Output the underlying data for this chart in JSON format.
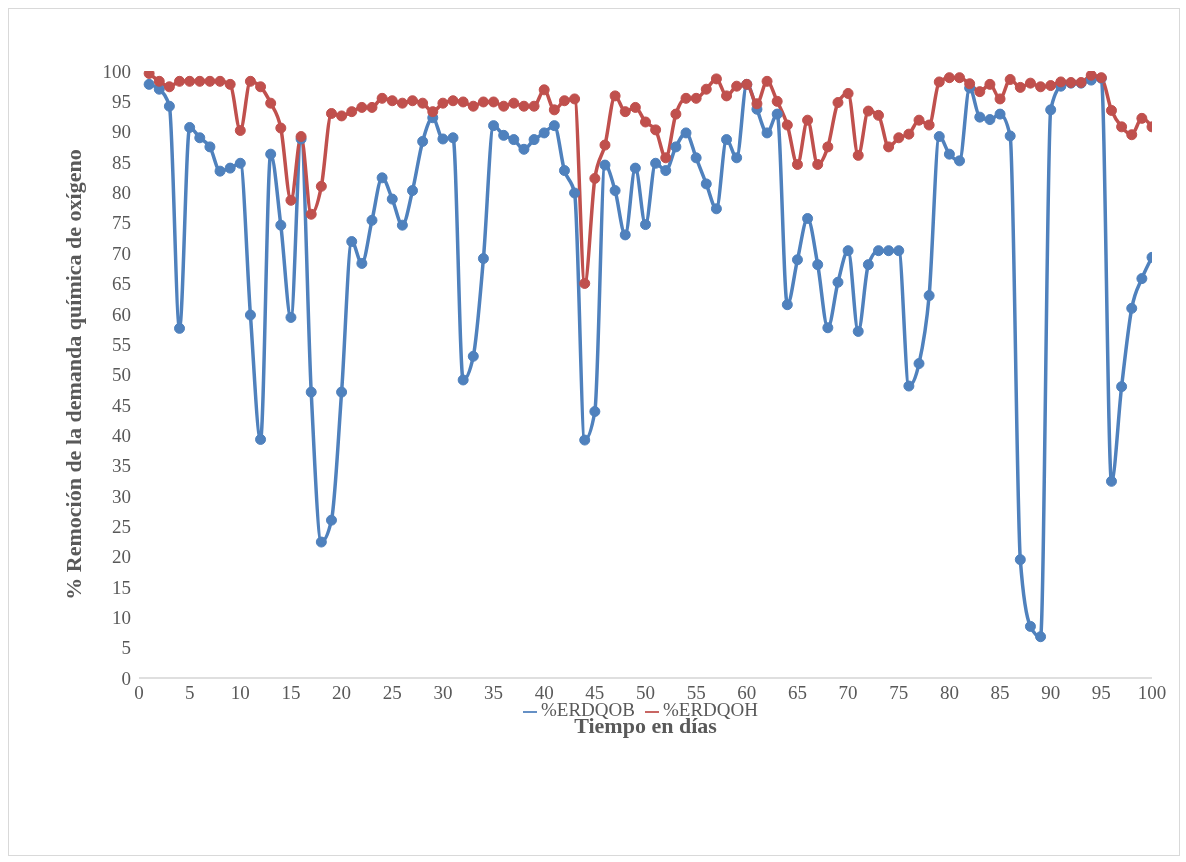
{
  "chart_data": {
    "type": "line",
    "xlabel": "Tiempo en días",
    "ylabel": "% Remoción de la demanda química de oxígeno",
    "x": [
      1,
      2,
      3,
      4,
      5,
      6,
      7,
      8,
      9,
      10,
      11,
      12,
      13,
      14,
      15,
      16,
      17,
      18,
      19,
      20,
      21,
      22,
      23,
      24,
      25,
      26,
      27,
      28,
      29,
      30,
      31,
      32,
      33,
      34,
      35,
      36,
      37,
      38,
      39,
      40,
      41,
      42,
      43,
      44,
      45,
      46,
      47,
      48,
      49,
      50,
      51,
      52,
      53,
      54,
      55,
      56,
      57,
      58,
      59,
      60,
      61,
      62,
      63,
      64,
      65,
      66,
      67,
      68,
      69,
      70,
      71,
      72,
      73,
      74,
      75,
      76,
      77,
      78,
      79,
      80,
      81,
      82,
      83,
      84,
      85,
      86,
      87,
      88,
      89,
      90,
      91,
      92,
      93,
      94,
      95,
      96,
      97,
      98,
      99,
      100
    ],
    "series": [
      {
        "name": "%ERDQOB",
        "color": "#4f81bd",
        "values": [
          97.8,
          97,
          94.2,
          57.6,
          90.7,
          89,
          87.5,
          83.5,
          84,
          84.8,
          59.8,
          39.3,
          86.3,
          74.6,
          59.4,
          88.8,
          47.1,
          22.4,
          26,
          47.1,
          71.9,
          68.3,
          75.4,
          82.4,
          78.9,
          74.6,
          80.3,
          88.4,
          92.3,
          88.8,
          89,
          49.1,
          53,
          69.1,
          91,
          89.4,
          88.7,
          87.1,
          88.7,
          89.8,
          91,
          83.6,
          79.9,
          39.2,
          43.9,
          84.5,
          80.3,
          73,
          84,
          74.7,
          84.8,
          83.6,
          87.5,
          89.8,
          85.7,
          81.4,
          77.3,
          88.7,
          85.7,
          97.8,
          93.7,
          89.8,
          92.9,
          61.5,
          68.9,
          75.7,
          68.1,
          57.7,
          65.2,
          70.4,
          57.1,
          68.1,
          70.4,
          70.4,
          70.4,
          48.1,
          51.8,
          63,
          89.2,
          86.3,
          85.2,
          97.2,
          92.4,
          92,
          92.9,
          89.3,
          19.5,
          8.5,
          6.8,
          93.6,
          97.5,
          98,
          98,
          98.5,
          98.8,
          32.4,
          48,
          60.9,
          65.8,
          69.3
        ]
      },
      {
        "name": "%ERDQOH",
        "color": "#c0504d",
        "values": [
          99.6,
          98.3,
          97.4,
          98.3,
          98.3,
          98.3,
          98.3,
          98.3,
          97.8,
          90.2,
          98.3,
          97.4,
          94.7,
          90.6,
          78.7,
          89.2,
          76.4,
          81,
          93,
          92.6,
          93.3,
          94,
          94,
          95.5,
          95.1,
          94.7,
          95.1,
          94.7,
          93.3,
          94.7,
          95.1,
          94.9,
          94.2,
          94.9,
          94.9,
          94.2,
          94.7,
          94.2,
          94.2,
          96.9,
          93.6,
          95.1,
          95.4,
          65,
          82.3,
          87.8,
          95.9,
          93.3,
          94,
          91.6,
          90.3,
          85.7,
          92.9,
          95.5,
          95.5,
          97,
          98.7,
          95.9,
          97.5,
          97.8,
          94.6,
          98.3,
          95,
          91.1,
          84.6,
          91.9,
          84.6,
          87.5,
          94.8,
          96.3,
          86.1,
          93.4,
          92.7,
          87.5,
          89,
          89.6,
          91.9,
          91.1,
          98.2,
          98.9,
          98.9,
          97.9,
          96.6,
          97.8,
          95.4,
          98.6,
          97.3,
          98,
          97.4,
          97.6,
          98.2,
          98.1,
          98.1,
          99.3,
          98.9,
          93.5,
          90.8,
          89.5,
          92.2,
          90.8
        ]
      }
    ],
    "xlim": [
      0,
      100
    ],
    "xticks": [
      0,
      5,
      10,
      15,
      20,
      25,
      30,
      35,
      40,
      45,
      50,
      55,
      60,
      65,
      70,
      75,
      80,
      85,
      90,
      95,
      100
    ],
    "ylim": [
      0,
      100
    ],
    "yticks": [
      0,
      5,
      10,
      15,
      20,
      25,
      30,
      35,
      40,
      45,
      50,
      55,
      60,
      65,
      70,
      75,
      80,
      85,
      90,
      95,
      100
    ],
    "grid": false,
    "legend": "bottom",
    "marker": "circle",
    "line_style": "solid"
  }
}
